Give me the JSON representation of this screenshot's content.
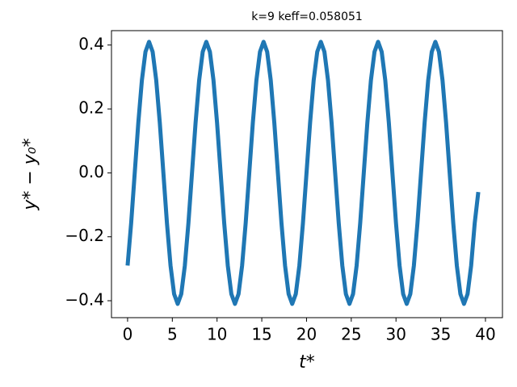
{
  "chart_data": {
    "type": "line",
    "title": "k=9 keff=0.058051",
    "xlabel": "t*",
    "ylabel": "y* − y₀*",
    "x": [
      0,
      0.4,
      0.8,
      1.2,
      1.6,
      2.0,
      2.4,
      2.8,
      3.2,
      3.6,
      4.0,
      4.4,
      4.8,
      5.2,
      5.6,
      6.0,
      6.4,
      6.8,
      7.2,
      7.6,
      8.0,
      8.4,
      8.8,
      9.2,
      9.6,
      10.0,
      10.4,
      10.8,
      11.2,
      11.6,
      12.0,
      12.4,
      12.8,
      13.2,
      13.6,
      14.0,
      14.4,
      14.8,
      15.2,
      15.6,
      16.0,
      16.4,
      16.8,
      17.2,
      17.6,
      18.0,
      18.4,
      18.8,
      19.2,
      19.6,
      20.0,
      20.4,
      20.8,
      21.2,
      21.6,
      22.0,
      22.4,
      22.8,
      23.2,
      23.6,
      24.0,
      24.4,
      24.8,
      25.2,
      25.6,
      26.0,
      26.4,
      26.8,
      27.2,
      27.6,
      28.0,
      28.4,
      28.8,
      29.2,
      29.6,
      30.0,
      30.4,
      30.8,
      31.2,
      31.6,
      32.0,
      32.4,
      32.8,
      33.2,
      33.6,
      34.0,
      34.4,
      34.8,
      35.2,
      35.6,
      36.0,
      36.4,
      36.8,
      37.2,
      37.6,
      38.0,
      38.4,
      38.8,
      39.2
    ],
    "series": [
      {
        "color": "#1f77b4",
        "values": [
          -0.29,
          -0.157,
          0,
          0.157,
          0.29,
          0.379,
          0.41,
          0.379,
          0.29,
          0.157,
          0,
          -0.157,
          -0.29,
          -0.379,
          -0.41,
          -0.379,
          -0.29,
          -0.157,
          0,
          0.157,
          0.29,
          0.379,
          0.41,
          0.379,
          0.29,
          0.157,
          0,
          -0.157,
          -0.29,
          -0.379,
          -0.41,
          -0.379,
          -0.29,
          -0.157,
          0,
          0.157,
          0.29,
          0.379,
          0.41,
          0.379,
          0.29,
          0.157,
          0,
          -0.157,
          -0.29,
          -0.379,
          -0.41,
          -0.379,
          -0.29,
          -0.157,
          0,
          0.157,
          0.29,
          0.379,
          0.41,
          0.379,
          0.29,
          0.157,
          0,
          -0.157,
          -0.29,
          -0.379,
          -0.41,
          -0.379,
          -0.29,
          -0.157,
          0,
          0.157,
          0.29,
          0.379,
          0.41,
          0.379,
          0.29,
          0.157,
          0,
          -0.157,
          -0.29,
          -0.379,
          -0.41,
          -0.379,
          -0.29,
          -0.157,
          0,
          0.157,
          0.29,
          0.379,
          0.41,
          0.379,
          0.29,
          0.157,
          0,
          -0.157,
          -0.29,
          -0.379,
          -0.41,
          -0.379,
          -0.29,
          -0.157,
          -0.06
        ]
      }
    ],
    "xlim": [
      -1.8,
      41.9
    ],
    "ylim": [
      -0.453,
      0.445
    ],
    "xticks": [
      0,
      5,
      10,
      15,
      20,
      25,
      30,
      35,
      40
    ],
    "yticks": [
      {
        "value": -0.4,
        "label": "−0.4"
      },
      {
        "value": -0.2,
        "label": "−0.2"
      },
      {
        "value": 0,
        "label": "0.0"
      },
      0.2,
      0.4
    ]
  }
}
